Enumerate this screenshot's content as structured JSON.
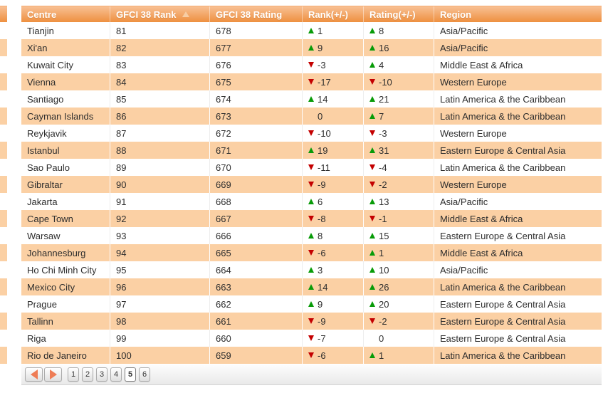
{
  "table": {
    "columns": [
      {
        "label": "Centre"
      },
      {
        "label": "GFCI 38 Rank",
        "sort_icon": "ascending-triangle"
      },
      {
        "label": "GFCI 38 Rating"
      },
      {
        "label": "Rank(+/-)"
      },
      {
        "label": "Rating(+/-)"
      },
      {
        "label": "Region"
      }
    ],
    "rows": [
      {
        "centre": "Tianjin",
        "rank": "81",
        "rating": "678",
        "rank_change": "1",
        "rating_change": "8",
        "region": "Asia/Pacific"
      },
      {
        "centre": "Xi'an",
        "rank": "82",
        "rating": "677",
        "rank_change": "9",
        "rating_change": "16",
        "region": "Asia/Pacific"
      },
      {
        "centre": "Kuwait City",
        "rank": "83",
        "rating": "676",
        "rank_change": "-3",
        "rating_change": "4",
        "region": "Middle East & Africa"
      },
      {
        "centre": "Vienna",
        "rank": "84",
        "rating": "675",
        "rank_change": "-17",
        "rating_change": "-10",
        "region": "Western Europe"
      },
      {
        "centre": "Santiago",
        "rank": "85",
        "rating": "674",
        "rank_change": "14",
        "rating_change": "21",
        "region": "Latin America & the Caribbean"
      },
      {
        "centre": "Cayman Islands",
        "rank": "86",
        "rating": "673",
        "rank_change": "0",
        "rating_change": "7",
        "region": "Latin America & the Caribbean"
      },
      {
        "centre": "Reykjavik",
        "rank": "87",
        "rating": "672",
        "rank_change": "-10",
        "rating_change": "-3",
        "region": "Western Europe"
      },
      {
        "centre": "Istanbul",
        "rank": "88",
        "rating": "671",
        "rank_change": "19",
        "rating_change": "31",
        "region": "Eastern Europe & Central Asia"
      },
      {
        "centre": "Sao Paulo",
        "rank": "89",
        "rating": "670",
        "rank_change": "-11",
        "rating_change": "-4",
        "region": "Latin America & the Caribbean"
      },
      {
        "centre": "Gibraltar",
        "rank": "90",
        "rating": "669",
        "rank_change": "-9",
        "rating_change": "-2",
        "region": "Western Europe"
      },
      {
        "centre": "Jakarta",
        "rank": "91",
        "rating": "668",
        "rank_change": "6",
        "rating_change": "13",
        "region": "Asia/Pacific"
      },
      {
        "centre": "Cape Town",
        "rank": "92",
        "rating": "667",
        "rank_change": "-8",
        "rating_change": "-1",
        "region": "Middle East & Africa"
      },
      {
        "centre": "Warsaw",
        "rank": "93",
        "rating": "666",
        "rank_change": "8",
        "rating_change": "15",
        "region": "Eastern Europe & Central Asia"
      },
      {
        "centre": "Johannesburg",
        "rank": "94",
        "rating": "665",
        "rank_change": "-6",
        "rating_change": "1",
        "region": "Middle East & Africa"
      },
      {
        "centre": "Ho Chi Minh City",
        "rank": "95",
        "rating": "664",
        "rank_change": "3",
        "rating_change": "10",
        "region": "Asia/Pacific"
      },
      {
        "centre": "Mexico City",
        "rank": "96",
        "rating": "663",
        "rank_change": "14",
        "rating_change": "26",
        "region": "Latin America & the Caribbean"
      },
      {
        "centre": "Prague",
        "rank": "97",
        "rating": "662",
        "rank_change": "9",
        "rating_change": "20",
        "region": "Eastern Europe & Central Asia"
      },
      {
        "centre": "Tallinn",
        "rank": "98",
        "rating": "661",
        "rank_change": "-9",
        "rating_change": "-2",
        "region": "Eastern Europe & Central Asia"
      },
      {
        "centre": "Riga",
        "rank": "99",
        "rating": "660",
        "rank_change": "-7",
        "rating_change": "0",
        "region": "Eastern Europe & Central Asia"
      },
      {
        "centre": "Rio de Janeiro",
        "rank": "100",
        "rating": "659",
        "rank_change": "-6",
        "rating_change": "1",
        "region": "Latin America & the Caribbean"
      }
    ]
  },
  "pagination": {
    "prev_icon": "left-triangle",
    "next_icon": "right-triangle",
    "pages": [
      "1",
      "2",
      "3",
      "4",
      "5",
      "6"
    ],
    "current_page": "5"
  },
  "colors": {
    "header_orange_top": "#F8C094",
    "header_orange_bottom": "#EE9040",
    "row_stripe": "#FBD0A4",
    "positive_change": "#089B08",
    "negative_change": "#C40000",
    "pager_arrow": "#EE7C55",
    "body_text": "#2D2D2D"
  },
  "icons": {
    "sort": "ascending-triangle",
    "increase": "green-up-arrow",
    "decrease": "red-down-arrow"
  }
}
